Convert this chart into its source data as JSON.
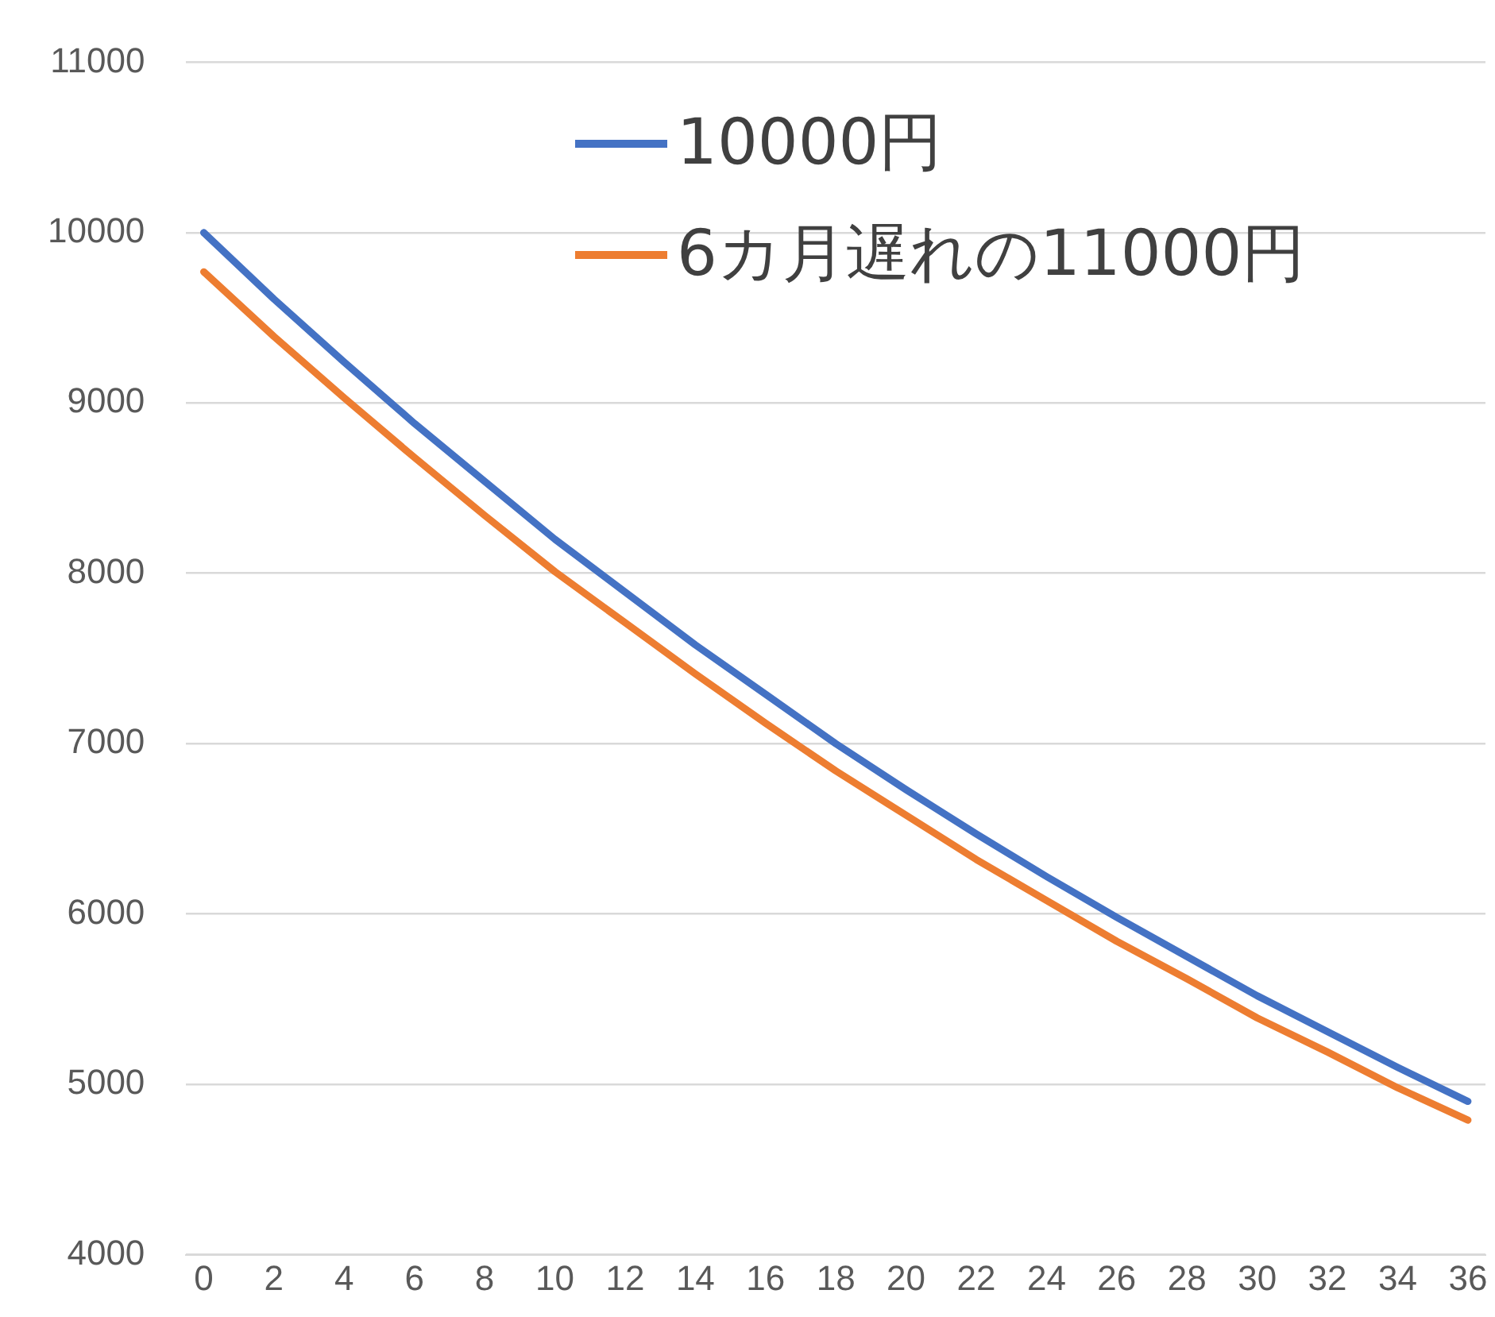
{
  "chart_data": {
    "type": "line",
    "x": [
      0,
      2,
      4,
      6,
      8,
      10,
      12,
      14,
      16,
      18,
      20,
      22,
      24,
      26,
      28,
      30,
      32,
      34,
      36
    ],
    "series": [
      {
        "name": "10000円",
        "color": "#4472c4",
        "values": [
          10000,
          9610,
          9240,
          8880,
          8540,
          8200,
          7890,
          7580,
          7290,
          7000,
          6730,
          6470,
          6220,
          5980,
          5750,
          5520,
          5310,
          5100,
          4900
        ]
      },
      {
        "name": "6カ月遅れの11000円",
        "color": "#ed7d31",
        "values": [
          9770,
          9390,
          9030,
          8680,
          8340,
          8010,
          7710,
          7410,
          7120,
          6840,
          6580,
          6320,
          6080,
          5840,
          5620,
          5390,
          5190,
          4980,
          4790
        ]
      }
    ],
    "xlim": [
      -0.5,
      36.5
    ],
    "xticks": [
      0,
      2,
      4,
      6,
      8,
      10,
      12,
      14,
      16,
      18,
      20,
      22,
      24,
      26,
      28,
      30,
      32,
      34,
      36
    ],
    "ylim": [
      4000,
      11000
    ],
    "yticks": [
      4000,
      5000,
      6000,
      7000,
      8000,
      9000,
      10000,
      11000
    ],
    "grid": "y",
    "legend": "top right",
    "marker": "none",
    "line_style": "solid"
  }
}
